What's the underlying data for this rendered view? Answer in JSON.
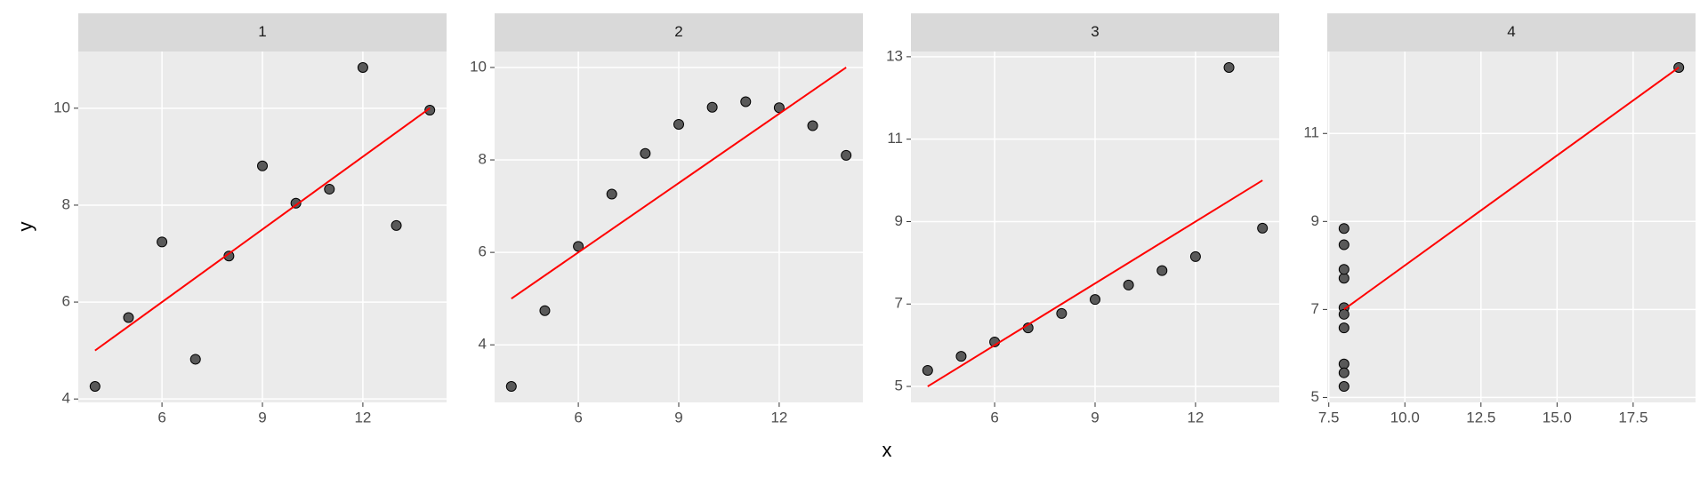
{
  "xlabel": "x",
  "ylabel": "y",
  "chart_data": [
    {
      "type": "scatter",
      "title": "1",
      "color": "#595959",
      "x": [
        10,
        8,
        13,
        9,
        11,
        14,
        6,
        4,
        12,
        7,
        5
      ],
      "y": [
        8.04,
        6.95,
        7.58,
        8.81,
        8.33,
        9.96,
        7.24,
        4.26,
        10.84,
        4.82,
        5.68
      ],
      "fit": {
        "x": [
          4,
          14
        ],
        "y": [
          5,
          10
        ],
        "color": "#ff0000"
      },
      "xlim": [
        3.5,
        14.5
      ],
      "ylim": [
        3.93,
        11.17
      ],
      "xticks": [
        6,
        9,
        12
      ],
      "yticks": [
        4,
        6,
        8,
        10
      ],
      "grid": true
    },
    {
      "type": "scatter",
      "title": "2",
      "color": "#595959",
      "x": [
        10,
        8,
        13,
        9,
        11,
        14,
        6,
        4,
        12,
        7,
        5
      ],
      "y": [
        9.14,
        8.14,
        8.74,
        8.77,
        9.26,
        8.1,
        6.13,
        3.1,
        9.13,
        7.26,
        4.74
      ],
      "fit": {
        "x": [
          4,
          14
        ],
        "y": [
          5,
          10
        ],
        "color": "#ff0000"
      },
      "xlim": [
        3.5,
        14.5
      ],
      "ylim": [
        2.755,
        10.345
      ],
      "xticks": [
        6,
        9,
        12
      ],
      "yticks": [
        4,
        6,
        8,
        10
      ],
      "grid": true
    },
    {
      "type": "scatter",
      "title": "3",
      "color": "#595959",
      "x": [
        10,
        8,
        13,
        9,
        11,
        14,
        6,
        4,
        12,
        7,
        5
      ],
      "y": [
        7.46,
        6.77,
        12.74,
        7.11,
        7.81,
        8.84,
        6.08,
        5.39,
        8.15,
        6.42,
        5.73
      ],
      "fit": {
        "x": [
          4,
          14
        ],
        "y": [
          5,
          10
        ],
        "color": "#ff0000"
      },
      "xlim": [
        3.5,
        14.5
      ],
      "ylim": [
        4.613,
        13.127
      ],
      "xticks": [
        6,
        9,
        12
      ],
      "yticks": [
        5,
        7,
        9,
        11,
        13
      ],
      "grid": true
    },
    {
      "type": "scatter",
      "title": "4",
      "color": "#595959",
      "x": [
        8,
        8,
        8,
        8,
        8,
        8,
        8,
        19,
        8,
        8,
        8
      ],
      "y": [
        6.58,
        5.76,
        7.71,
        8.84,
        8.47,
        7.04,
        5.25,
        12.5,
        5.56,
        7.91,
        6.89
      ],
      "fit": {
        "x": [
          8,
          19
        ],
        "y": [
          7,
          12.5
        ],
        "color": "#ff0000"
      },
      "xlim": [
        7.45,
        19.55
      ],
      "ylim": [
        4.8875,
        12.8625
      ],
      "xticks": [
        7.5,
        {
          "value": 10,
          "label": "10.0"
        },
        12.5,
        {
          "value": 15,
          "label": "15.0"
        },
        17.5
      ],
      "yticks": [
        5,
        7,
        9,
        11
      ],
      "grid": true
    }
  ]
}
